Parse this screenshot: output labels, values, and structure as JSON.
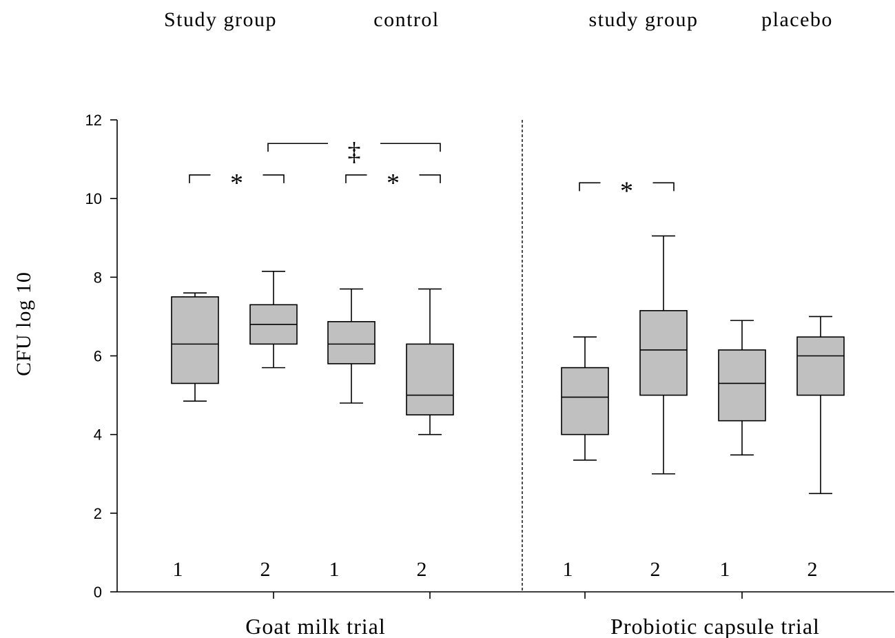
{
  "chart_data": {
    "type": "box",
    "ylabel": "CFU log 10",
    "ylim": [
      0,
      12
    ],
    "yticks": [
      0,
      2,
      4,
      6,
      8,
      10,
      12
    ],
    "grid": false,
    "panels": [
      {
        "name": "Goat milk trial",
        "groups": [
          {
            "name": "Study group",
            "boxes": [
              {
                "label": "1",
                "min": 4.85,
                "q1": 5.3,
                "median": 6.3,
                "q3": 7.5,
                "max": 7.6
              },
              {
                "label": "2",
                "min": 5.7,
                "q1": 6.3,
                "median": 6.8,
                "q3": 7.3,
                "max": 8.15
              }
            ]
          },
          {
            "name": "control",
            "boxes": [
              {
                "label": "1",
                "min": 4.8,
                "q1": 5.8,
                "median": 6.3,
                "q3": 6.87,
                "max": 7.7
              },
              {
                "label": "2",
                "min": 4.0,
                "q1": 4.5,
                "median": 5.0,
                "q3": 6.3,
                "max": 7.7
              }
            ]
          }
        ],
        "annotations": [
          {
            "symbol": "*",
            "from": 0,
            "to": 1,
            "y": 10.6
          },
          {
            "symbol": "*",
            "from": 2,
            "to": 3,
            "y": 10.6
          },
          {
            "symbol": "‡",
            "from": 1,
            "to": 3,
            "y": 11.4
          }
        ]
      },
      {
        "name": "Probiotic capsule trial",
        "groups": [
          {
            "name": "study group",
            "boxes": [
              {
                "label": "1",
                "min": 3.35,
                "q1": 4.0,
                "median": 4.95,
                "q3": 5.7,
                "max": 6.48
              },
              {
                "label": "2",
                "min": 3.0,
                "q1": 5.0,
                "median": 6.15,
                "q3": 7.15,
                "max": 9.05
              }
            ]
          },
          {
            "name": "placebo",
            "boxes": [
              {
                "label": "1",
                "min": 3.48,
                "q1": 4.35,
                "median": 5.3,
                "q3": 6.15,
                "max": 6.9
              },
              {
                "label": "2",
                "min": 2.5,
                "q1": 5.0,
                "median": 6.0,
                "q3": 6.48,
                "max": 7.0
              }
            ]
          }
        ],
        "annotations": [
          {
            "symbol": "*",
            "from": 0,
            "to": 1,
            "y": 10.4
          }
        ]
      }
    ]
  },
  "colors": {
    "box_fill": "#c0c0c0",
    "line": "#000000"
  }
}
